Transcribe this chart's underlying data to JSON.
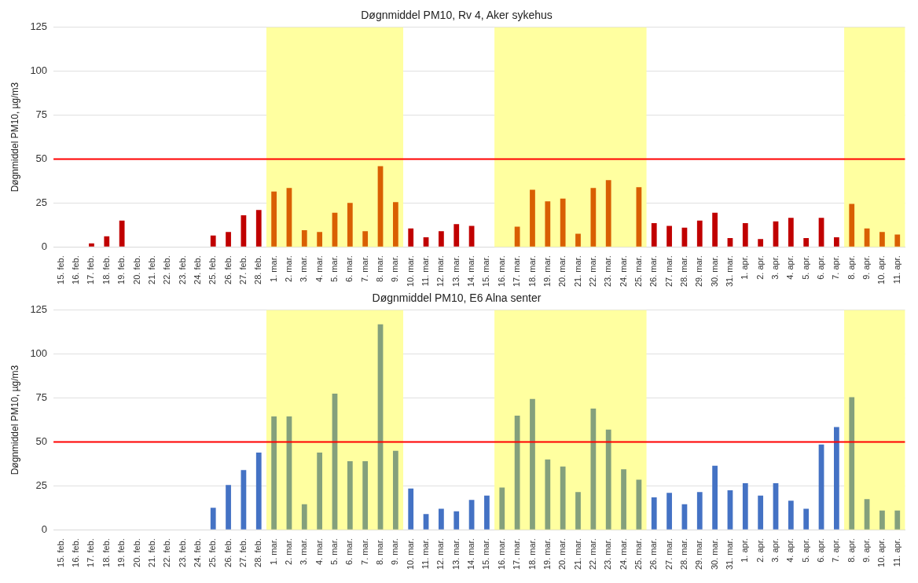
{
  "chart_data": [
    {
      "type": "bar",
      "title": "Døgnmiddel PM10, Rv 4, Aker sykehus",
      "ylabel": "Døgnmiddel PM10, µg/m3",
      "categories": [
        "15. feb.",
        "16. feb.",
        "17. feb.",
        "18. feb.",
        "19. feb.",
        "20. feb.",
        "21. feb.",
        "22. feb.",
        "23. feb.",
        "24. feb.",
        "25. feb.",
        "26. feb.",
        "27. feb.",
        "28. feb.",
        "1. mar.",
        "2. mar.",
        "3. mar.",
        "4. mar.",
        "5. mar.",
        "6. mar.",
        "7. mar.",
        "8. mar.",
        "9. mar.",
        "10. mar.",
        "11. mar.",
        "12. mar.",
        "13. mar.",
        "14. mar.",
        "15. mar.",
        "16. mar.",
        "17. mar.",
        "18. mar.",
        "19. mar.",
        "20. mar.",
        "21. mar.",
        "22. mar.",
        "23. mar.",
        "24. mar.",
        "25. mar.",
        "26. mar.",
        "27. mar.",
        "28. mar.",
        "29. mar.",
        "30. mar.",
        "31. mar.",
        "1. apr.",
        "2. apr.",
        "3. apr.",
        "4. apr.",
        "5. apr.",
        "6. apr.",
        "7. apr.",
        "8. apr.",
        "9. apr.",
        "10. apr.",
        "11. apr."
      ],
      "values": [
        null,
        null,
        2,
        6,
        15,
        null,
        null,
        null,
        null,
        null,
        6.5,
        8.5,
        18,
        21,
        31.5,
        33.5,
        9.5,
        8.5,
        19.5,
        25,
        9,
        46,
        25.5,
        10.5,
        5.5,
        9,
        13,
        12,
        null,
        null,
        11.5,
        32.5,
        26,
        27.5,
        7.5,
        33.5,
        38,
        null,
        34,
        13.5,
        12,
        11,
        15,
        19.5,
        5,
        13.5,
        4.5,
        14.5,
        16.5,
        5,
        16.5,
        5.5,
        24.5,
        10.5,
        8.5,
        7
      ],
      "colors": [
        "#c00000",
        "#c00000",
        "#c00000",
        "#c00000",
        "#c00000",
        "#c00000",
        "#c00000",
        "#c00000",
        "#c00000",
        "#c00000",
        "#c00000",
        "#c00000",
        "#c00000",
        "#c00000",
        "#d95f02",
        "#d95f02",
        "#d95f02",
        "#d95f02",
        "#d95f02",
        "#d95f02",
        "#d95f02",
        "#d95f02",
        "#d95f02",
        "#c00000",
        "#c00000",
        "#c00000",
        "#c00000",
        "#c00000",
        "#c00000",
        "#d95f02",
        "#d95f02",
        "#d95f02",
        "#d95f02",
        "#d95f02",
        "#d95f02",
        "#d95f02",
        "#d95f02",
        "#d95f02",
        "#d95f02",
        "#c00000",
        "#c00000",
        "#c00000",
        "#c00000",
        "#c00000",
        "#c00000",
        "#c00000",
        "#c00000",
        "#c00000",
        "#c00000",
        "#c00000",
        "#c00000",
        "#c00000",
        "#d95f02",
        "#d95f02",
        "#d95f02",
        "#d95f02"
      ],
      "ylim": [
        0,
        125
      ],
      "yticks": [
        0,
        25,
        50,
        75,
        100,
        125
      ],
      "grid": "y",
      "legend": false,
      "ref_lines": [
        {
          "axis": "y",
          "value": 50,
          "color": "#ff0000"
        }
      ],
      "bands": [
        {
          "axis": "x",
          "from": "1. mar.",
          "to": "9. mar.",
          "color": "#ffffa0"
        },
        {
          "axis": "x",
          "from": "16. mar.",
          "to": "25. mar.",
          "color": "#ffffa0"
        },
        {
          "axis": "x",
          "from": "8. apr.",
          "to": "11. apr.",
          "color": "#ffffa0"
        }
      ]
    },
    {
      "type": "bar",
      "title": "Døgnmiddel PM10, E6 Alna senter",
      "ylabel": "Døgnmiddel PM10, µg/m3",
      "categories": [
        "15. feb.",
        "16. feb.",
        "17. feb.",
        "18. feb.",
        "19. feb.",
        "20. feb.",
        "21. feb.",
        "22. feb.",
        "23. feb.",
        "24. feb.",
        "25. feb.",
        "26. feb.",
        "27. feb.",
        "28. feb.",
        "1. mar.",
        "2. mar.",
        "3. mar.",
        "4. mar.",
        "5. mar.",
        "6. mar.",
        "7. mar.",
        "8. mar.",
        "9. mar.",
        "10. mar.",
        "11. mar.",
        "12. mar.",
        "13. mar.",
        "14. mar.",
        "15. mar.",
        "16. mar.",
        "17. mar.",
        "18. mar.",
        "19. mar.",
        "20. mar.",
        "21. mar.",
        "22. mar.",
        "23. mar.",
        "24. mar.",
        "25. mar.",
        "26. mar.",
        "27. mar.",
        "28. mar.",
        "29. mar.",
        "30. mar.",
        "31. mar.",
        "1. apr.",
        "2. apr.",
        "3. apr.",
        "4. apr.",
        "5. apr.",
        "6. apr.",
        "7. apr.",
        "8. apr.",
        "9. apr.",
        "10. apr.",
        "11. apr."
      ],
      "values": [
        null,
        null,
        null,
        null,
        null,
        null,
        null,
        null,
        null,
        null,
        12.5,
        25.5,
        34,
        44,
        64.5,
        64.5,
        14.5,
        44,
        77.5,
        39,
        39,
        117,
        45,
        23.5,
        9,
        12,
        10.5,
        17,
        19.5,
        24,
        65,
        74.5,
        40,
        36,
        21.5,
        69,
        57,
        34.5,
        28.5,
        18.5,
        21,
        14.5,
        21.5,
        36.5,
        22.5,
        26.5,
        19.5,
        26.5,
        16.5,
        12,
        48.5,
        58.5,
        75.5,
        17.5,
        11,
        11
      ],
      "colors": [
        "#4472c4",
        "#4472c4",
        "#4472c4",
        "#4472c4",
        "#4472c4",
        "#4472c4",
        "#4472c4",
        "#4472c4",
        "#4472c4",
        "#4472c4",
        "#4472c4",
        "#4472c4",
        "#4472c4",
        "#4472c4",
        "#84a07c",
        "#84a07c",
        "#84a07c",
        "#84a07c",
        "#84a07c",
        "#84a07c",
        "#84a07c",
        "#84a07c",
        "#84a07c",
        "#4472c4",
        "#4472c4",
        "#4472c4",
        "#4472c4",
        "#4472c4",
        "#4472c4",
        "#84a07c",
        "#84a07c",
        "#84a07c",
        "#84a07c",
        "#84a07c",
        "#84a07c",
        "#84a07c",
        "#84a07c",
        "#84a07c",
        "#84a07c",
        "#4472c4",
        "#4472c4",
        "#4472c4",
        "#4472c4",
        "#4472c4",
        "#4472c4",
        "#4472c4",
        "#4472c4",
        "#4472c4",
        "#4472c4",
        "#4472c4",
        "#4472c4",
        "#4472c4",
        "#84a07c",
        "#84a07c",
        "#84a07c",
        "#84a07c"
      ],
      "ylim": [
        0,
        125
      ],
      "yticks": [
        0,
        25,
        50,
        75,
        100,
        125
      ],
      "grid": "y",
      "legend": false,
      "ref_lines": [
        {
          "axis": "y",
          "value": 50,
          "color": "#ff0000"
        }
      ],
      "bands": [
        {
          "axis": "x",
          "from": "1. mar.",
          "to": "9. mar.",
          "color": "#ffffa0"
        },
        {
          "axis": "x",
          "from": "16. mar.",
          "to": "25. mar.",
          "color": "#ffffa0"
        },
        {
          "axis": "x",
          "from": "8. apr.",
          "to": "11. apr.",
          "color": "#ffffa0"
        }
      ]
    }
  ]
}
